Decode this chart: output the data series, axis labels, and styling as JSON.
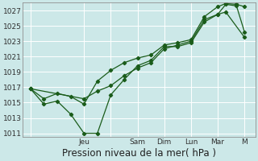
{
  "xlabel": "Pression niveau de la mer( hPa )",
  "bg_color": "#cce8e8",
  "grid_color": "#ffffff",
  "line_color": "#1a5c1a",
  "ylim": [
    1010.5,
    1028.0
  ],
  "yticks": [
    1011,
    1013,
    1015,
    1017,
    1019,
    1021,
    1023,
    1025,
    1027
  ],
  "x_day_labels": [
    "",
    "Jeu",
    "",
    "Sam",
    "Dim",
    "Lun",
    "Mar",
    "M"
  ],
  "x_day_positions": [
    0,
    2,
    3,
    4,
    5,
    6,
    7,
    8
  ],
  "series1_x": [
    0,
    0.5,
    1.0,
    1.5,
    2.0,
    2.5,
    3.0,
    3.5,
    4.0,
    4.5,
    5.0,
    5.5,
    6.0,
    6.5,
    7.0,
    7.3,
    7.7,
    8.0
  ],
  "series1_y": [
    1016.8,
    1014.8,
    1015.2,
    1013.5,
    1011.0,
    1011.0,
    1016.0,
    1018.0,
    1019.8,
    1020.5,
    1022.3,
    1022.3,
    1022.8,
    1025.5,
    1026.5,
    1027.8,
    1027.6,
    1024.2
  ],
  "series2_x": [
    0,
    0.5,
    1.0,
    1.5,
    2.0,
    2.5,
    3.0,
    3.5,
    4.0,
    4.5,
    5.0,
    5.5,
    6.0,
    6.5,
    7.0,
    7.3,
    7.7,
    8.0
  ],
  "series2_y": [
    1016.8,
    1015.5,
    1016.2,
    1015.8,
    1014.8,
    1017.8,
    1019.2,
    1020.2,
    1020.8,
    1021.2,
    1022.5,
    1022.8,
    1023.2,
    1026.2,
    1027.5,
    1027.9,
    1027.8,
    1027.5
  ],
  "series3_x": [
    0,
    2.0,
    2.5,
    3.0,
    3.5,
    4.0,
    4.5,
    5.0,
    5.5,
    6.0,
    6.5,
    7.0,
    7.3,
    8.0
  ],
  "series3_y": [
    1016.8,
    1015.5,
    1016.5,
    1017.2,
    1018.5,
    1019.5,
    1020.2,
    1022.0,
    1022.5,
    1023.0,
    1025.8,
    1026.5,
    1026.8,
    1023.5
  ],
  "xlim": [
    -0.3,
    8.4
  ],
  "xlabel_fontsize": 8.5,
  "tick_fontsize": 6.5,
  "figsize": [
    3.2,
    2.0
  ],
  "dpi": 100
}
